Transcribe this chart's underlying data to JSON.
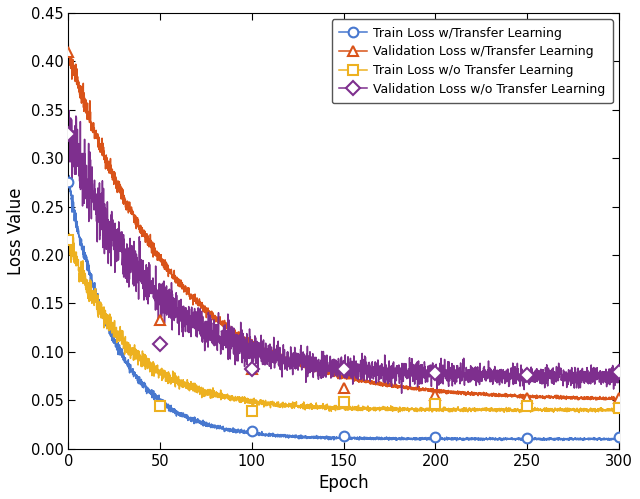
{
  "xlabel": "Epoch",
  "ylabel": "Loss Value",
  "xlim": [
    0,
    300
  ],
  "ylim": [
    0,
    0.45
  ],
  "yticks": [
    0.0,
    0.05,
    0.1,
    0.15,
    0.2,
    0.25,
    0.3,
    0.35,
    0.4,
    0.45
  ],
  "xticks": [
    0,
    50,
    100,
    150,
    200,
    250,
    300
  ],
  "colors": {
    "train_tl": "#4878CF",
    "val_tl": "#D95319",
    "train_no_tl": "#EDB120",
    "val_no_tl": "#7E2F8E"
  },
  "legend": [
    "Train Loss w/Transfer Learning",
    "Validation Loss w/Transfer Learning",
    "Train Loss w/o Transfer Learning",
    "Validation Loss w/o Transfer Learning"
  ],
  "marker_epochs": [
    0,
    50,
    100,
    150,
    200,
    250,
    300
  ],
  "train_tl_markers": [
    0.275,
    0.046,
    0.018,
    0.013,
    0.012,
    0.011,
    0.012
  ],
  "val_tl_markers": [
    0.41,
    0.133,
    0.082,
    0.063,
    0.055,
    0.052,
    0.052
  ],
  "train_no_tl_markers": [
    0.215,
    0.044,
    0.039,
    0.048,
    0.046,
    0.044,
    0.042
  ],
  "val_no_tl_markers": [
    0.325,
    0.108,
    0.082,
    0.082,
    0.078,
    0.076,
    0.079
  ],
  "background_color": "#ffffff",
  "figsize": [
    6.4,
    4.99
  ],
  "dpi": 100
}
